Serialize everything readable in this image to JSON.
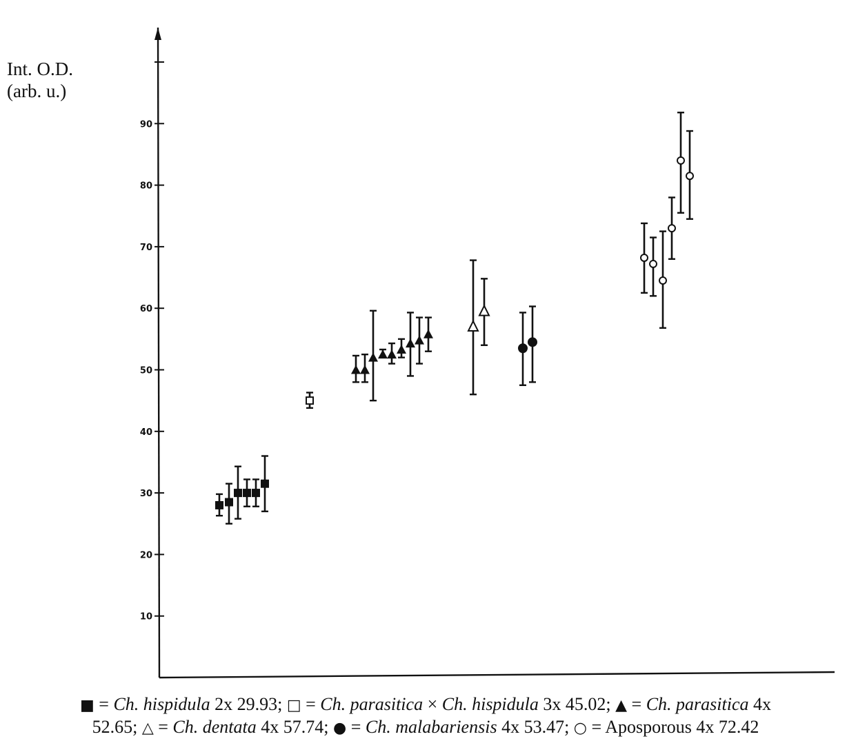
{
  "chart_data": {
    "type": "scatter",
    "title": "",
    "xlabel": "",
    "ylabel": "Int. O.D.",
    "ylabel_unit": "(arb. u.)",
    "ylim": [
      0,
      100
    ],
    "yticks": [
      "10",
      "20",
      "30",
      "40",
      "50",
      "60",
      "70",
      "80",
      "90"
    ],
    "grid": false,
    "error_bars": true,
    "series": [
      {
        "name": "Ch. hispidula 2x 29.93",
        "marker": "filled-square",
        "points": [
          {
            "x": 1,
            "y": 28.0,
            "low": 26.3,
            "high": 29.8
          },
          {
            "x": 2,
            "y": 28.5,
            "low": 25.0,
            "high": 31.5
          },
          {
            "x": 3,
            "y": 30.0,
            "low": 25.8,
            "high": 34.3
          },
          {
            "x": 4,
            "y": 30.0,
            "low": 27.8,
            "high": 32.2
          },
          {
            "x": 5,
            "y": 30.0,
            "low": 27.8,
            "high": 32.2
          },
          {
            "x": 6,
            "y": 31.5,
            "low": 27.0,
            "high": 36.0
          }
        ]
      },
      {
        "name": "Ch. parasitica × Ch. hispidula 3x 45.02",
        "marker": "open-square",
        "points": [
          {
            "x": 7,
            "y": 45.0,
            "low": 43.8,
            "high": 46.3
          }
        ]
      },
      {
        "name": "Ch. parasitica 4x 52.65",
        "marker": "filled-triangle",
        "points": [
          {
            "x": 8,
            "y": 50.0,
            "low": 48.0,
            "high": 52.3
          },
          {
            "x": 9,
            "y": 50.0,
            "low": 48.0,
            "high": 52.5
          },
          {
            "x": 10,
            "y": 52.0,
            "low": 45.0,
            "high": 59.6
          },
          {
            "x": 11,
            "y": 52.5,
            "low": 52.0,
            "high": 53.3
          },
          {
            "x": 12,
            "y": 52.5,
            "low": 51.0,
            "high": 54.3
          },
          {
            "x": 13,
            "y": 53.3,
            "low": 52.0,
            "high": 55.0
          },
          {
            "x": 14,
            "y": 54.3,
            "low": 49.0,
            "high": 59.3
          },
          {
            "x": 15,
            "y": 54.8,
            "low": 51.0,
            "high": 58.5
          },
          {
            "x": 16,
            "y": 55.8,
            "low": 53.0,
            "high": 58.5
          }
        ]
      },
      {
        "name": "Ch. dentata 4x 57.74",
        "marker": "open-triangle",
        "points": [
          {
            "x": 17,
            "y": 57.0,
            "low": 46.0,
            "high": 67.8
          },
          {
            "x": 18,
            "y": 59.5,
            "low": 54.0,
            "high": 64.8
          }
        ]
      },
      {
        "name": "Ch. malabariensis 4x 53.47",
        "marker": "filled-circle",
        "points": [
          {
            "x": 19,
            "y": 53.5,
            "low": 47.5,
            "high": 59.3
          },
          {
            "x": 20,
            "y": 54.5,
            "low": 48.0,
            "high": 60.3
          }
        ]
      },
      {
        "name": "Aposporous 4x 72.42",
        "marker": "open-circle",
        "points": [
          {
            "x": 21,
            "y": 68.2,
            "low": 62.5,
            "high": 73.8
          },
          {
            "x": 22,
            "y": 67.2,
            "low": 62.0,
            "high": 71.5
          },
          {
            "x": 23,
            "y": 64.5,
            "low": 56.8,
            "high": 72.5
          },
          {
            "x": 24,
            "y": 73.0,
            "low": 68.0,
            "high": 78.0
          },
          {
            "x": 25,
            "y": 84.0,
            "low": 75.5,
            "high": 91.8
          },
          {
            "x": 26,
            "y": 81.5,
            "low": 74.5,
            "high": 88.8
          }
        ]
      }
    ]
  },
  "legend": {
    "row1": [
      {
        "symbol": "■",
        "eq": " = ",
        "species": "Ch. hispidula",
        "value": "  2x 29.93; "
      },
      {
        "symbol": "□",
        "eq": " = ",
        "species": "Ch. parasitica",
        "value": ""
      },
      {
        "symbol": "",
        "eq": " × ",
        "species": "Ch. hispidula",
        "value": "  3x 45.02; "
      },
      {
        "symbol": "▲",
        "eq": " = ",
        "species": "Ch. parasitica",
        "value": "  4x"
      }
    ],
    "row2": [
      {
        "symbol": "",
        "eq": "",
        "species": "",
        "value": "52.65; "
      },
      {
        "symbol": "△",
        "eq": " = ",
        "species": "Ch. dentata",
        "value": " 4x 57.74; "
      },
      {
        "symbol": "●",
        "eq": " = ",
        "species": "Ch. malabariensis",
        "value": " 4x 53.47; "
      },
      {
        "symbol": "○",
        "eq": " = ",
        "species": "",
        "value": "Aposporous 4x 72.42"
      }
    ]
  }
}
